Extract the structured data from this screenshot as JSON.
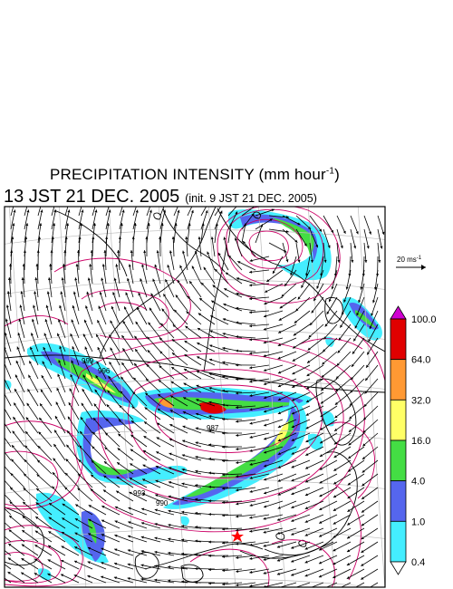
{
  "title": {
    "main": "PRECIPITATION INTENSITY (mm hour",
    "exponent": "-1",
    "close": ")",
    "valid_time": "13 JST 21 DEC. 2005",
    "init_time": "(init. 9 JST 21 DEC. 2005)"
  },
  "wind_reference": {
    "label": "20 ms",
    "exponent": "-1"
  },
  "colorbar": {
    "labels": [
      "100.0",
      "64.0",
      "32.0",
      "16.0",
      "4.0",
      "1.0",
      "0.4"
    ],
    "colors": [
      "#d000d0",
      "#e00000",
      "#ff9933",
      "#ffff66",
      "#44dd44",
      "#5566ee",
      "#44eeff",
      "#ffffff"
    ]
  },
  "isobar_labels": [
    "999",
    "996",
    "993",
    "990",
    "987"
  ],
  "colors": {
    "isobar": "#cc0066",
    "coast": "#000000",
    "grid": "#bbbbbb",
    "marker": "#ff0000"
  }
}
